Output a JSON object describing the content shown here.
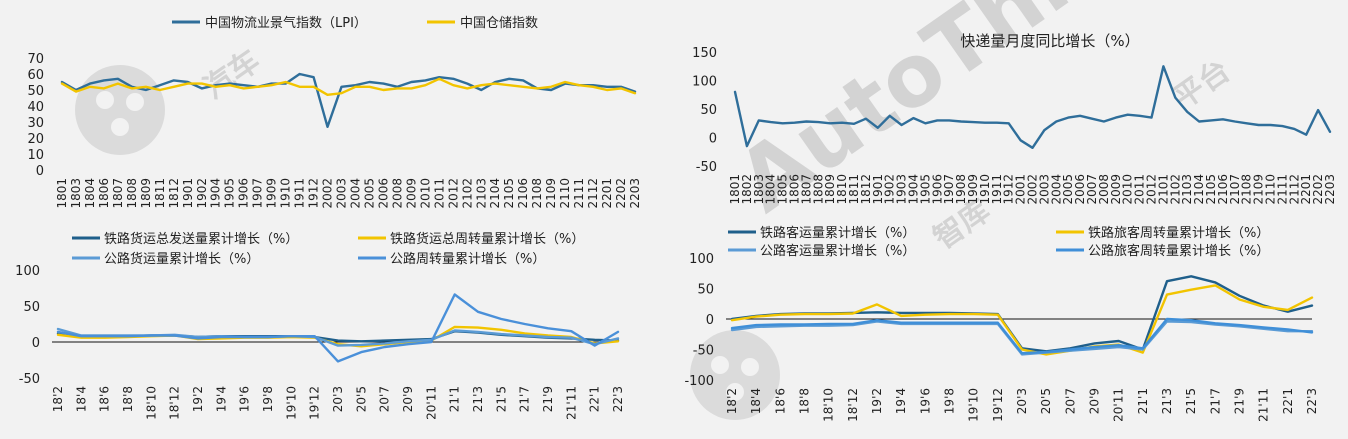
{
  "watermark": {
    "brand": "AutoThinker",
    "cn_a": "汽车",
    "cn_b": "智库",
    "cn_c": "平台"
  },
  "chart_data": [
    {
      "id": "lpi",
      "type": "line",
      "title": "",
      "ylim": [
        0,
        70
      ],
      "yticks": [
        0,
        10,
        20,
        30,
        40,
        50,
        60,
        70
      ],
      "legend_placement": "top",
      "categories": [
        "1801",
        "1803",
        "1804",
        "1806",
        "1807",
        "1808",
        "1809",
        "1811",
        "1812",
        "1901",
        "1902",
        "1904",
        "1905",
        "1906",
        "1907",
        "1909",
        "1910",
        "1911",
        "1912",
        "2002",
        "2003",
        "2004",
        "2005",
        "2006",
        "2008",
        "2009",
        "2010",
        "2011",
        "2012",
        "2102",
        "2103",
        "2104",
        "2105",
        "2106",
        "2108",
        "2109",
        "2110",
        "2111",
        "2112",
        "2201",
        "2202",
        "2203"
      ],
      "series": [
        {
          "name": "中国物流业景气指数（LPI）",
          "color": "#2f6e9a",
          "values": [
            55,
            50,
            54,
            56,
            57,
            52,
            50,
            53,
            56,
            55,
            51,
            53,
            54,
            53,
            52,
            54,
            54,
            60,
            58,
            27,
            52,
            53,
            55,
            54,
            52,
            55,
            56,
            58,
            57,
            54,
            50,
            55,
            57,
            56,
            51,
            50,
            54,
            53,
            53,
            52,
            52,
            49
          ]
        },
        {
          "name": "中国仓储指数",
          "color": "#f2c400",
          "values": [
            54,
            49,
            52,
            51,
            54,
            51,
            52,
            50,
            52,
            54,
            54,
            52,
            53,
            51,
            52,
            53,
            55,
            52,
            52,
            47,
            48,
            52,
            52,
            50,
            51,
            51,
            53,
            57,
            53,
            51,
            53,
            54,
            53,
            52,
            51,
            52,
            55,
            53,
            52,
            50,
            51,
            48
          ]
        }
      ]
    },
    {
      "id": "express",
      "type": "line",
      "title": "快递量月度同比增长（%）",
      "ylim": [
        -50,
        150
      ],
      "yticks": [
        -50,
        0,
        50,
        100,
        150
      ],
      "categories": [
        "1801",
        "1802",
        "1803",
        "1804",
        "1805",
        "1806",
        "1807",
        "1808",
        "1809",
        "1810",
        "1811",
        "1812",
        "1901",
        "1902",
        "1903",
        "1904",
        "1905",
        "1906",
        "1907",
        "1908",
        "1909",
        "1910",
        "1911",
        "1912",
        "2001",
        "2002",
        "2003",
        "2004",
        "2005",
        "2006",
        "2007",
        "2008",
        "2009",
        "2010",
        "2011",
        "2012",
        "2101",
        "2102",
        "2103",
        "2104",
        "2105",
        "2106",
        "2107",
        "2108",
        "2109",
        "2110",
        "2111",
        "2112",
        "2201",
        "2202",
        "2203"
      ],
      "series": [
        {
          "name": "",
          "color": "#2f6e9a",
          "values": [
            80,
            -15,
            30,
            27,
            25,
            26,
            28,
            27,
            25,
            26,
            24,
            33,
            17,
            38,
            22,
            34,
            25,
            30,
            30,
            28,
            27,
            26,
            26,
            25,
            -5,
            -18,
            13,
            28,
            35,
            38,
            33,
            28,
            35,
            40,
            38,
            35,
            125,
            70,
            45,
            28,
            30,
            32,
            28,
            25,
            22,
            22,
            20,
            15,
            5,
            48,
            10
          ]
        }
      ]
    },
    {
      "id": "freight",
      "type": "line",
      "title": "",
      "ylim": [
        -50,
        100
      ],
      "yticks": [
        -50,
        0,
        50,
        100
      ],
      "legend_placement": "top",
      "categories": [
        "18'2",
        "18'4",
        "18'6",
        "18'8",
        "18'10",
        "18'12",
        "19'2",
        "19'4",
        "19'6",
        "19'8",
        "19'10",
        "19'12",
        "20'3",
        "20'5",
        "20'7",
        "20'9",
        "20'11",
        "21'1",
        "21'3",
        "21'5",
        "21'7",
        "21'9",
        "21'11",
        "22'1",
        "22'3"
      ],
      "series": [
        {
          "name": "铁路货运总发送量累计增长（%）",
          "color": "#1f5f8b",
          "values": [
            12,
            8,
            8,
            8,
            9,
            9,
            7,
            8,
            8,
            8,
            8,
            7,
            2,
            1,
            2,
            3,
            4,
            15,
            13,
            10,
            8,
            6,
            5,
            3,
            2
          ]
        },
        {
          "name": "铁路货运总周转量累计增长（%）",
          "color": "#f2c400",
          "values": [
            10,
            6,
            6,
            7,
            8,
            9,
            4,
            5,
            6,
            6,
            7,
            6,
            -3,
            -6,
            -3,
            0,
            2,
            21,
            20,
            17,
            12,
            9,
            7,
            -2,
            1
          ]
        },
        {
          "name": "公路货运量累计增长（%）",
          "color": "#5b9bd5",
          "values": [
            18,
            9,
            9,
            9,
            9,
            10,
            7,
            8,
            7,
            7,
            8,
            7,
            -5,
            -4,
            -2,
            1,
            3,
            16,
            14,
            11,
            9,
            7,
            6,
            -3,
            5
          ]
        },
        {
          "name": "公路周转量累计增长（%）",
          "color": "#4a90d9",
          "values": [
            14,
            8,
            8,
            8,
            9,
            9,
            5,
            7,
            7,
            7,
            8,
            8,
            -27,
            -14,
            -7,
            -3,
            0,
            66,
            42,
            32,
            25,
            19,
            15,
            -5,
            14
          ]
        }
      ]
    },
    {
      "id": "passenger",
      "type": "line",
      "title": "",
      "ylim": [
        -100,
        100
      ],
      "yticks": [
        -100,
        -50,
        0,
        50,
        100
      ],
      "legend_placement": "top",
      "categories": [
        "18'2",
        "18'4",
        "18'6",
        "18'8",
        "18'10",
        "18'12",
        "19'2",
        "19'4",
        "19'6",
        "19'8",
        "19'10",
        "19'12",
        "20'3",
        "20'5",
        "20'7",
        "20'9",
        "20'11",
        "21'1",
        "21'3",
        "21'5",
        "21'7",
        "21'9",
        "21'11",
        "22'1",
        "22'3"
      ],
      "series": [
        {
          "name": "铁路客运量累计增长（%）",
          "color": "#1f5f8b",
          "values": [
            0,
            5,
            8,
            9,
            9,
            10,
            11,
            10,
            10,
            10,
            9,
            8,
            -48,
            -53,
            -48,
            -40,
            -36,
            -50,
            62,
            70,
            60,
            38,
            22,
            12,
            22
          ]
        },
        {
          "name": "铁路旅客周转量累计增长（%）",
          "color": "#f2c400",
          "values": [
            -2,
            4,
            7,
            8,
            8,
            9,
            24,
            5,
            7,
            8,
            8,
            7,
            -50,
            -58,
            -52,
            -45,
            -42,
            -55,
            40,
            48,
            55,
            32,
            20,
            15,
            35
          ]
        },
        {
          "name": "公路客运量累计增长（%）",
          "color": "#5b9bd5",
          "values": [
            -18,
            -13,
            -12,
            -11,
            -11,
            -10,
            -4,
            -8,
            -8,
            -8,
            -8,
            -8,
            -58,
            -55,
            -52,
            -49,
            -46,
            -50,
            -4,
            -5,
            -9,
            -12,
            -16,
            -20,
            -20
          ]
        },
        {
          "name": "公路旅客周转量累计增长（%）",
          "color": "#3f8fd8",
          "values": [
            -15,
            -10,
            -9,
            -9,
            -8,
            -8,
            -2,
            -6,
            -6,
            -6,
            -6,
            -6,
            -56,
            -54,
            -50,
            -46,
            -43,
            -48,
            0,
            -2,
            -7,
            -10,
            -14,
            -17,
            -22
          ]
        }
      ]
    }
  ]
}
